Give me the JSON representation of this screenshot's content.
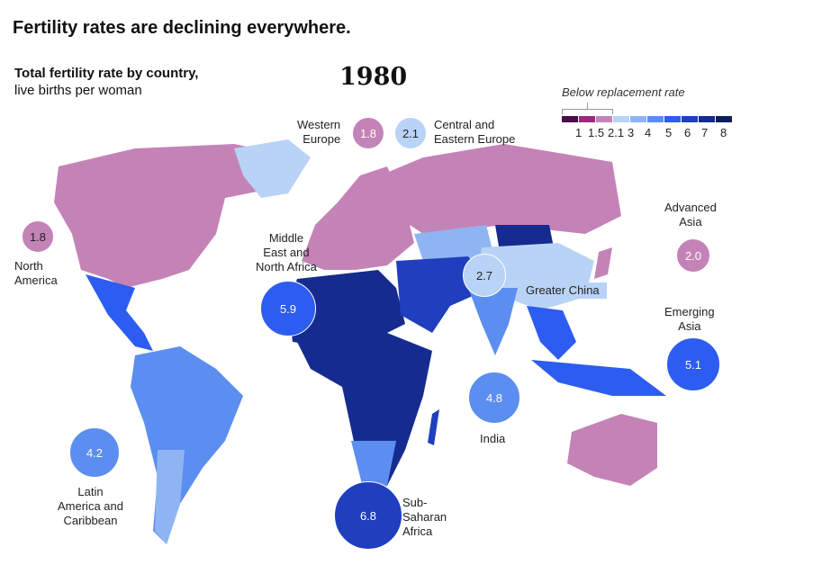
{
  "title": "Fertility rates are declining everywhere.",
  "subtitle_bold": "Total fertility rate by country,",
  "subtitle": "live births per woman",
  "year": "1980",
  "legend": {
    "title": "Below replacement rate",
    "ticks": [
      "1",
      "1.5",
      "2.1",
      "3",
      "4",
      "5",
      "6",
      "7",
      "8"
    ],
    "colors": [
      "#4a0d45",
      "#9c2a7c",
      "#c483b7",
      "#b9d3f7",
      "#8fb4f2",
      "#5b8ef0",
      "#2d5cf0",
      "#1f3fbf",
      "#152b8f",
      "#0c1f5a"
    ]
  },
  "regions": [
    {
      "name": "Western Europe",
      "value": "1.8",
      "color": "#c483b7"
    },
    {
      "name": "Central and Eastern Europe",
      "value": "2.1",
      "color": "#b9d3f7"
    },
    {
      "name": "North America",
      "value": "1.8",
      "color": "#c483b7"
    },
    {
      "name": "Advanced Asia",
      "value": "2.0",
      "color": "#c483b7"
    },
    {
      "name": "Greater China",
      "value": "2.7",
      "color": "#b9d3f7"
    },
    {
      "name": "Middle East and North Africa",
      "value": "5.9",
      "color": "#2d5cf0"
    },
    {
      "name": "Emerging Asia",
      "value": "5.1",
      "color": "#2d5cf0"
    },
    {
      "name": "India",
      "value": "4.8",
      "color": "#5b8ef0"
    },
    {
      "name": "Latin America and Caribbean",
      "value": "4.2",
      "color": "#5b8ef0"
    },
    {
      "name": "Sub-Saharan Africa",
      "value": "6.8",
      "color": "#1f3fbf"
    }
  ]
}
